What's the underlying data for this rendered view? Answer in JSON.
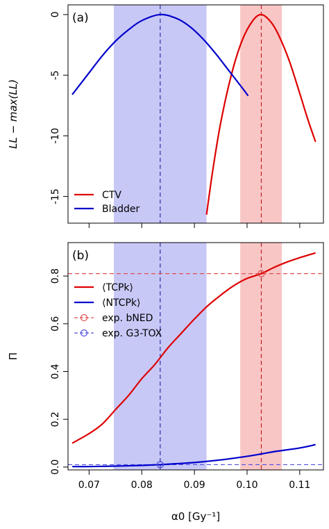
{
  "chart_data": [
    {
      "type": "line",
      "panel_label": "(a)",
      "ylabel": "LL − max(LL)",
      "xlim": [
        0.066,
        0.1145
      ],
      "ylim": [
        -17.2,
        0.8
      ],
      "x_ticks": [
        0.07,
        0.08,
        0.09,
        0.1,
        0.11
      ],
      "x_tick_labels_shown": false,
      "y_ticks": [
        0,
        -5,
        -10,
        -15
      ],
      "y_tick_labels": [
        "0",
        "-5",
        "-10",
        "-15"
      ],
      "grid": false,
      "legend_position": "bottom-left",
      "bands": [
        {
          "series": "Bladder",
          "x_range": [
            0.0747,
            0.0923
          ],
          "color": "#c8c8f7"
        },
        {
          "series": "CTV",
          "x_range": [
            0.0987,
            0.1066
          ],
          "color": "#f9c6c6"
        }
      ],
      "vlines": [
        {
          "series": "Bladder",
          "x": 0.0835,
          "color": "#3030a0"
        },
        {
          "series": "CTV",
          "x": 0.1027,
          "color": "#c02020"
        }
      ],
      "series": [
        {
          "name": "CTV",
          "color": "#dd0000",
          "x": [
            0.0923,
            0.0935,
            0.095,
            0.097,
            0.099,
            0.101,
            0.1027,
            0.1045,
            0.106,
            0.108,
            0.11,
            0.1115,
            0.113
          ],
          "y": [
            -16.5,
            -12.8,
            -8.9,
            -5.0,
            -2.2,
            -0.55,
            0.0,
            -0.6,
            -1.7,
            -3.8,
            -6.5,
            -8.6,
            -10.5
          ]
        },
        {
          "name": "Bladder",
          "color": "#0000cc",
          "x": [
            0.0668,
            0.07,
            0.0725,
            0.075,
            0.0775,
            0.08,
            0.0835,
            0.0865,
            0.089,
            0.0915,
            0.094,
            0.0965,
            0.099,
            0.1002
          ],
          "y": [
            -6.6,
            -4.8,
            -3.4,
            -2.2,
            -1.25,
            -0.5,
            0.0,
            -0.3,
            -0.95,
            -1.95,
            -3.2,
            -4.6,
            -6.0,
            -6.7
          ]
        }
      ]
    },
    {
      "type": "line",
      "panel_label": "(b)",
      "ylabel": "Π",
      "xlabel": "α0 [Gy⁻¹]",
      "xlim": [
        0.066,
        0.1145
      ],
      "ylim": [
        -0.012,
        0.94
      ],
      "x_ticks": [
        0.07,
        0.08,
        0.09,
        0.1,
        0.11
      ],
      "x_tick_labels": [
        "0.07",
        "0.08",
        "0.09",
        "0.10",
        "0.11"
      ],
      "y_ticks": [
        0.0,
        0.2,
        0.4,
        0.6,
        0.8
      ],
      "y_tick_labels": [
        "0.0",
        "0.2",
        "0.4",
        "0.6",
        "0.8"
      ],
      "grid": false,
      "legend_position": "top-left",
      "bands": [
        {
          "series": "NTCP",
          "x_range": [
            0.0747,
            0.0923
          ],
          "color": "#c8c8f7"
        },
        {
          "series": "TCP",
          "x_range": [
            0.0987,
            0.1066
          ],
          "color": "#f9c6c6"
        }
      ],
      "vlines": [
        {
          "x": 0.0835,
          "color": "#3030a0"
        },
        {
          "x": 0.1027,
          "color": "#c02020"
        }
      ],
      "hlines": [
        {
          "name": "exp. bNED",
          "y": 0.81,
          "color": "#e05050"
        },
        {
          "name": "exp. G3-TOX",
          "y": 0.01,
          "color": "#5050e0"
        }
      ],
      "markers": [
        {
          "series": "exp. bNED",
          "x": 0.1027,
          "y": 0.81,
          "color": "#e05050"
        },
        {
          "series": "exp. G3-TOX",
          "x": 0.0835,
          "y": 0.01,
          "color": "#5050e0"
        }
      ],
      "series": [
        {
          "name": "⟨TCPk⟩",
          "color": "#dd0000",
          "x": [
            0.0668,
            0.07,
            0.0725,
            0.075,
            0.0775,
            0.08,
            0.0825,
            0.085,
            0.0875,
            0.09,
            0.0925,
            0.095,
            0.0975,
            0.1,
            0.1027,
            0.105,
            0.1075,
            0.11,
            0.113
          ],
          "y": [
            0.1,
            0.14,
            0.18,
            0.24,
            0.3,
            0.37,
            0.43,
            0.5,
            0.56,
            0.62,
            0.675,
            0.72,
            0.76,
            0.79,
            0.81,
            0.835,
            0.858,
            0.877,
            0.897
          ]
        },
        {
          "name": "⟨NTCPk⟩",
          "color": "#0000cc",
          "x": [
            0.0668,
            0.07,
            0.075,
            0.08,
            0.0835,
            0.085,
            0.09,
            0.095,
            0.1,
            0.1027,
            0.105,
            0.11,
            0.113
          ],
          "y": [
            0.002,
            0.002,
            0.004,
            0.007,
            0.01,
            0.012,
            0.019,
            0.03,
            0.045,
            0.055,
            0.064,
            0.08,
            0.094
          ]
        }
      ],
      "legend": [
        {
          "label": "⟨TCPk⟩",
          "style": "solid",
          "color": "#dd0000",
          "marker": false
        },
        {
          "label": "⟨NTCPk⟩",
          "style": "solid",
          "color": "#0000cc",
          "marker": false
        },
        {
          "label": "exp. bNED",
          "style": "dashed",
          "color": "#e05050",
          "marker": true
        },
        {
          "label": "exp. G3-TOX",
          "style": "dashed",
          "color": "#5050e0",
          "marker": true
        }
      ]
    }
  ]
}
